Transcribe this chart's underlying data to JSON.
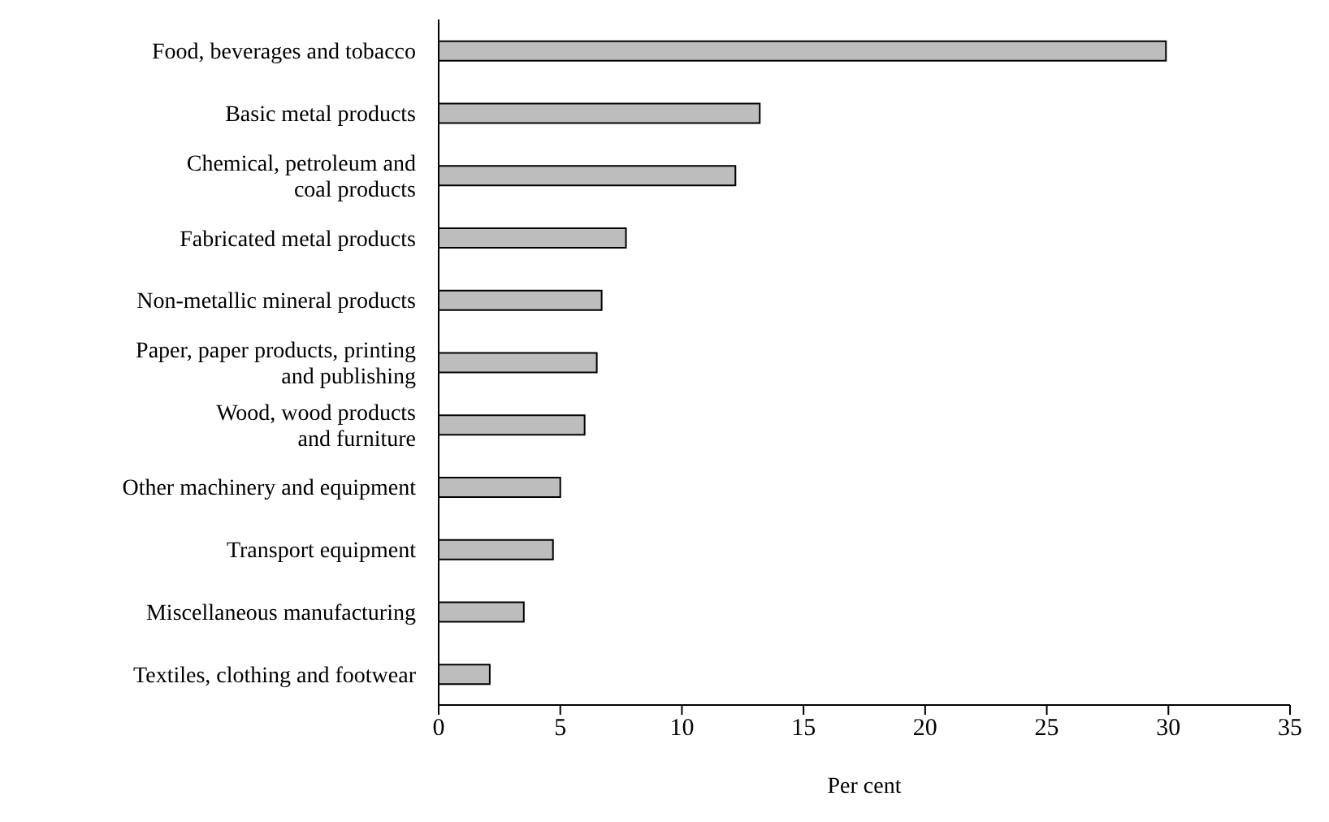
{
  "chart_data": {
    "type": "bar",
    "orientation": "horizontal",
    "xlabel": "Per cent",
    "categories": [
      "Food, beverages and tobacco",
      "Basic metal products",
      "Chemical, petroleum and\ncoal products",
      "Fabricated metal products",
      "Non-metallic mineral products",
      "Paper, paper products, printing\nand publishing",
      "Wood, wood products\nand furniture",
      "Other machinery and equipment",
      "Transport equipment",
      "Miscellaneous manufacturing",
      "Textiles, clothing and footwear"
    ],
    "values": [
      29.9,
      13.2,
      12.2,
      7.7,
      6.7,
      6.5,
      6.0,
      5.0,
      4.7,
      3.5,
      2.1
    ],
    "color": "#bdbdbd",
    "xlim": [
      0,
      35
    ],
    "xticks": [
      0,
      5,
      10,
      15,
      20,
      25,
      30,
      35
    ],
    "grid": false,
    "legend": false
  }
}
